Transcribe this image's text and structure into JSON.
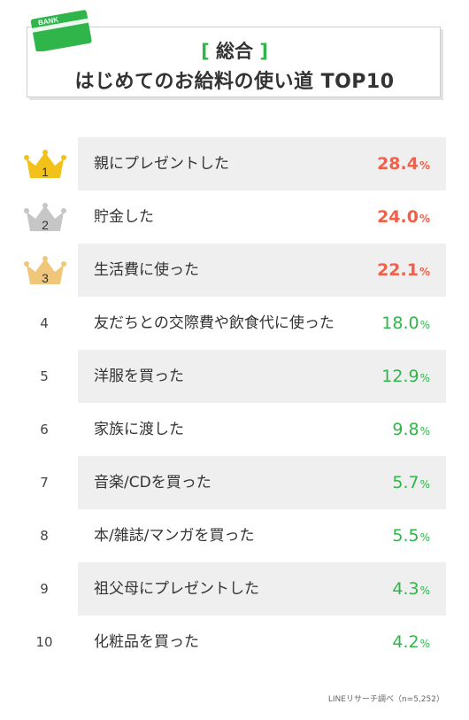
{
  "header": {
    "card_text": "BANK",
    "category_open": "[",
    "category": "総合",
    "category_close": "]",
    "title": "はじめてのお給料の使い道 TOP10"
  },
  "colors": {
    "top3": "#f0604a",
    "rest": "#2fb54a",
    "gold": "#f2c21a",
    "silver": "#c6c6c6",
    "bronze": "#f0c77a",
    "card": "#2fb54a"
  },
  "chart_data": {
    "type": "bar",
    "unit": "%",
    "ranks": [
      "1",
      "2",
      "3",
      "4",
      "5",
      "6",
      "7",
      "8",
      "9",
      "10"
    ],
    "categories": [
      "親にプレゼントした",
      "貯金した",
      "生活費に使った",
      "友だちとの交際費や飲食代に使った",
      "洋服を買った",
      "家族に渡した",
      "音楽/CDを買った",
      "本/雑誌/マンガを買った",
      "祖父母にプレゼントした",
      "化粧品を買った"
    ],
    "values": [
      "28.4",
      "24.0",
      "22.1",
      "18.0",
      "12.9",
      "9.8",
      "5.7",
      "5.5",
      "4.3",
      "4.2"
    ]
  },
  "footnote": "LINEリサーチ調べ（n=5,252）"
}
